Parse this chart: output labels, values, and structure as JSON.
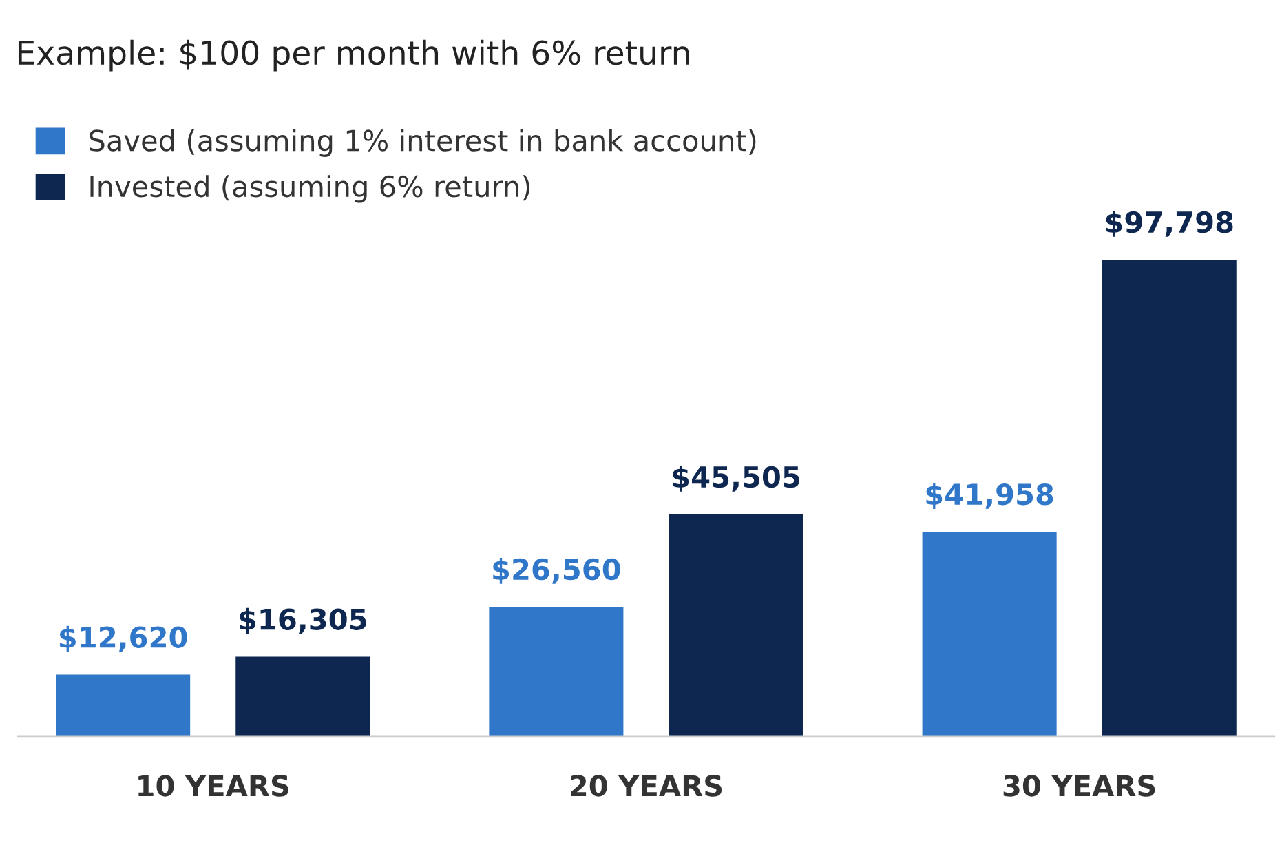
{
  "chart_data": {
    "type": "bar",
    "title": "Example: $100 per month with 6% return",
    "categories": [
      "10 YEARS",
      "20 YEARS",
      "30 YEARS"
    ],
    "series": [
      {
        "name": "Saved (assuming 1% interest in bank account)",
        "color": "#3077c9",
        "values": [
          12620,
          26560,
          41958
        ],
        "value_labels": [
          "$12,620",
          "$26,560",
          "$41,958"
        ]
      },
      {
        "name": "Invested (assuming 6% return)",
        "color": "#0d2750",
        "values": [
          16305,
          45505,
          97798
        ],
        "value_labels": [
          "$16,305",
          "$45,505",
          "$97,798"
        ]
      }
    ],
    "tick_labels": "x",
    "legend": "top left",
    "grid": false
  }
}
